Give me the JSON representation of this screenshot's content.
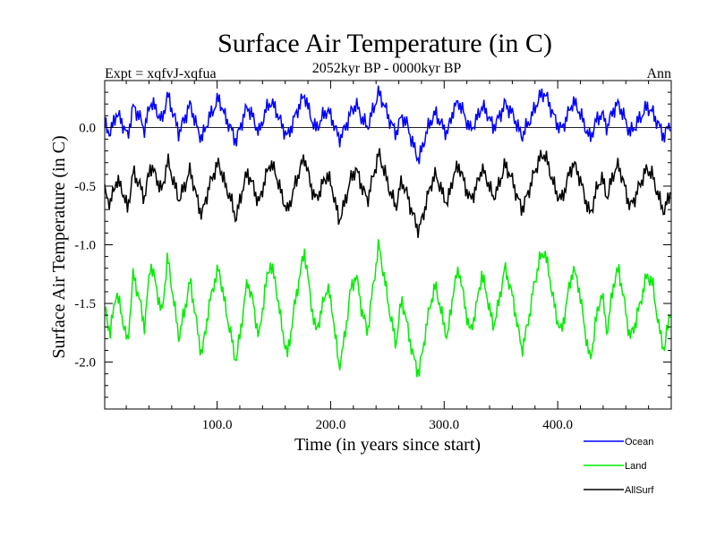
{
  "chart_data": {
    "type": "line",
    "title": "Surface Air Temperature (in C)",
    "subtitle": "2052kyr BP - 0000kyr BP",
    "left_label": "Expt = xqfvJ-xqfua",
    "right_label": "Ann",
    "xlabel": "Time (in years since start)",
    "ylabel": "Surface Air Temperature (in C)",
    "xlim": [
      1,
      500
    ],
    "ylim": [
      -2.4,
      0.4
    ],
    "x_ticks": [
      100,
      200,
      300,
      400
    ],
    "x_tick_labels": [
      "100.0",
      "200.0",
      "300.0",
      "400.0"
    ],
    "y_ticks": [
      0.0,
      -0.5,
      -1.0,
      -1.5,
      -2.0
    ],
    "y_tick_labels": [
      "0.0",
      "-0.5",
      "-1.0",
      "-1.5",
      "-2.0"
    ],
    "reference_line": 0.0,
    "legend_position": "bottom-right",
    "series": [
      {
        "name": "Ocean",
        "color": "#0000ff",
        "values": [
          0.02,
          -0.05,
          0.12,
          0.05,
          -0.08,
          0.18,
          0.1,
          -0.02,
          0.22,
          0.15,
          0.05,
          0.28,
          0.12,
          -0.05,
          0.08,
          0.2,
          0.02,
          -0.1,
          0.05,
          0.15,
          0.25,
          0.1,
          0.0,
          -0.12,
          0.05,
          0.18,
          0.08,
          -0.05,
          0.12,
          0.22,
          0.15,
          0.02,
          -0.08,
          0.05,
          0.18,
          0.28,
          0.1,
          -0.02,
          0.08,
          0.15,
          0.05,
          -0.1,
          -0.02,
          0.12,
          0.2,
          0.08,
          0.0,
          0.15,
          0.3,
          0.18,
          0.05,
          -0.05,
          0.1,
          0.02,
          -0.15,
          -0.28,
          -0.1,
          0.05,
          0.12,
          0.02,
          -0.05,
          0.15,
          0.22,
          0.1,
          -0.02,
          0.05,
          0.18,
          0.12,
          0.0,
          0.08,
          0.2,
          0.15,
          0.05,
          -0.08,
          0.02,
          0.12,
          0.25,
          0.3,
          0.18,
          0.05,
          -0.02,
          0.1,
          0.22,
          0.15,
          0.02,
          -0.1,
          0.05,
          0.12,
          0.0,
          0.15,
          0.2,
          0.08,
          -0.05,
          0.02,
          0.1,
          0.18,
          0.12,
          0.02,
          -0.08,
          0.05
        ]
      },
      {
        "name": "AllSurf",
        "color": "#000000",
        "values": [
          -0.55,
          -0.65,
          -0.45,
          -0.52,
          -0.7,
          -0.38,
          -0.48,
          -0.6,
          -0.32,
          -0.42,
          -0.55,
          -0.28,
          -0.45,
          -0.62,
          -0.5,
          -0.36,
          -0.58,
          -0.75,
          -0.55,
          -0.4,
          -0.3,
          -0.48,
          -0.6,
          -0.78,
          -0.55,
          -0.38,
          -0.5,
          -0.65,
          -0.45,
          -0.3,
          -0.4,
          -0.58,
          -0.72,
          -0.55,
          -0.38,
          -0.25,
          -0.48,
          -0.62,
          -0.5,
          -0.4,
          -0.55,
          -0.8,
          -0.65,
          -0.45,
          -0.35,
          -0.5,
          -0.62,
          -0.42,
          -0.22,
          -0.38,
          -0.55,
          -0.68,
          -0.45,
          -0.58,
          -0.75,
          -0.88,
          -0.7,
          -0.5,
          -0.4,
          -0.55,
          -0.65,
          -0.42,
          -0.32,
          -0.48,
          -0.62,
          -0.52,
          -0.35,
          -0.45,
          -0.6,
          -0.5,
          -0.32,
          -0.4,
          -0.55,
          -0.7,
          -0.58,
          -0.42,
          -0.28,
          -0.22,
          -0.38,
          -0.55,
          -0.62,
          -0.45,
          -0.3,
          -0.4,
          -0.58,
          -0.75,
          -0.55,
          -0.42,
          -0.6,
          -0.4,
          -0.32,
          -0.5,
          -0.68,
          -0.58,
          -0.45,
          -0.35,
          -0.42,
          -0.6,
          -0.72,
          -0.55
        ]
      },
      {
        "name": "Land",
        "color": "#00ee00",
        "values": [
          -1.55,
          -1.75,
          -1.4,
          -1.6,
          -1.85,
          -1.25,
          -1.45,
          -1.7,
          -1.15,
          -1.35,
          -1.6,
          -1.1,
          -1.45,
          -1.8,
          -1.55,
          -1.3,
          -1.65,
          -1.95,
          -1.6,
          -1.35,
          -1.2,
          -1.5,
          -1.75,
          -2.0,
          -1.65,
          -1.3,
          -1.5,
          -1.8,
          -1.4,
          -1.15,
          -1.35,
          -1.7,
          -1.95,
          -1.6,
          -1.3,
          -1.05,
          -1.45,
          -1.75,
          -1.55,
          -1.35,
          -1.6,
          -2.05,
          -1.8,
          -1.4,
          -1.25,
          -1.55,
          -1.75,
          -1.35,
          -1.0,
          -1.3,
          -1.6,
          -1.85,
          -1.45,
          -1.7,
          -1.95,
          -2.1,
          -1.8,
          -1.5,
          -1.35,
          -1.6,
          -1.8,
          -1.4,
          -1.2,
          -1.5,
          -1.75,
          -1.55,
          -1.25,
          -1.45,
          -1.7,
          -1.5,
          -1.2,
          -1.35,
          -1.6,
          -1.9,
          -1.7,
          -1.4,
          -1.15,
          -1.05,
          -1.3,
          -1.6,
          -1.75,
          -1.45,
          -1.2,
          -1.35,
          -1.7,
          -2.0,
          -1.65,
          -1.4,
          -1.75,
          -1.35,
          -1.2,
          -1.5,
          -1.8,
          -1.65,
          -1.45,
          -1.25,
          -1.35,
          -1.7,
          -1.9,
          -1.55
        ]
      }
    ]
  }
}
